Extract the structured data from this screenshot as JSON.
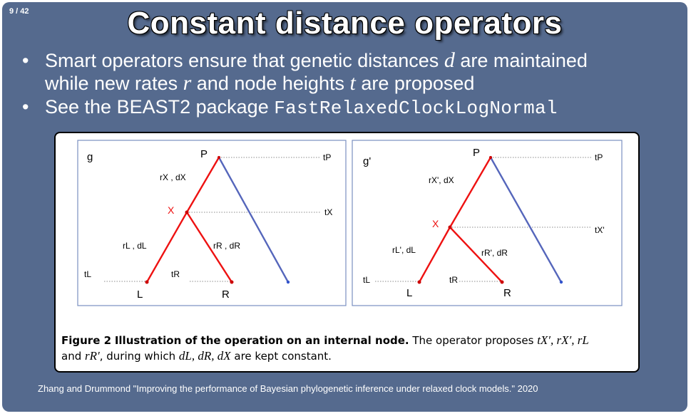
{
  "page_number": "9 / 42",
  "title": "Constant distance operators",
  "bullets": [
    {
      "parts": [
        "Smart operators ensure that genetic distances ",
        "d",
        " are maintained"
      ],
      "line2": [
        "while new rates ",
        "r",
        " and node heights ",
        "t",
        " are proposed"
      ]
    },
    {
      "text": "See the BEAST2 package ",
      "code": "FastRelaxedClockLogNormal"
    }
  ],
  "panels": [
    {
      "tag": "g",
      "nodes": {
        "P": "P",
        "X": "X",
        "L": "L",
        "R": "R"
      },
      "edge_labels": {
        "x": "rX , dX",
        "l": "rL , dL",
        "r": "rR , dR"
      },
      "heights": {
        "tP": "tP",
        "tX": "tX",
        "tL": "tL",
        "tR": "tR"
      }
    },
    {
      "tag": "g'",
      "nodes": {
        "P": "P",
        "X": "X",
        "L": "L",
        "R": "R"
      },
      "edge_labels": {
        "x": "rX', dX",
        "l": "rL', dL",
        "r": "rR', dR"
      },
      "heights": {
        "tP": "tP",
        "tX": "tX'",
        "tL": "tL",
        "tR": "tR"
      }
    }
  ],
  "caption": {
    "label": "Figure 2",
    "bold_text": "Illustration of the operation on an internal node.",
    "text1": " The operator proposes ",
    "m1": "tX′, rX′, rL",
    "text2": "and ",
    "m2": "rR′",
    "text3": ", during which ",
    "m3": "dL, dR, dX",
    "text4": " are kept constant."
  },
  "citation": "Zhang and Drummond \"Improving the performance of Bayesian phylogenetic inference under relaxed clock models.\" 2020",
  "colors": {
    "slide_bg": "#556a8e",
    "red": "#ee1111",
    "blue": "#5566bb",
    "panel_border": "#7a8fc0"
  }
}
